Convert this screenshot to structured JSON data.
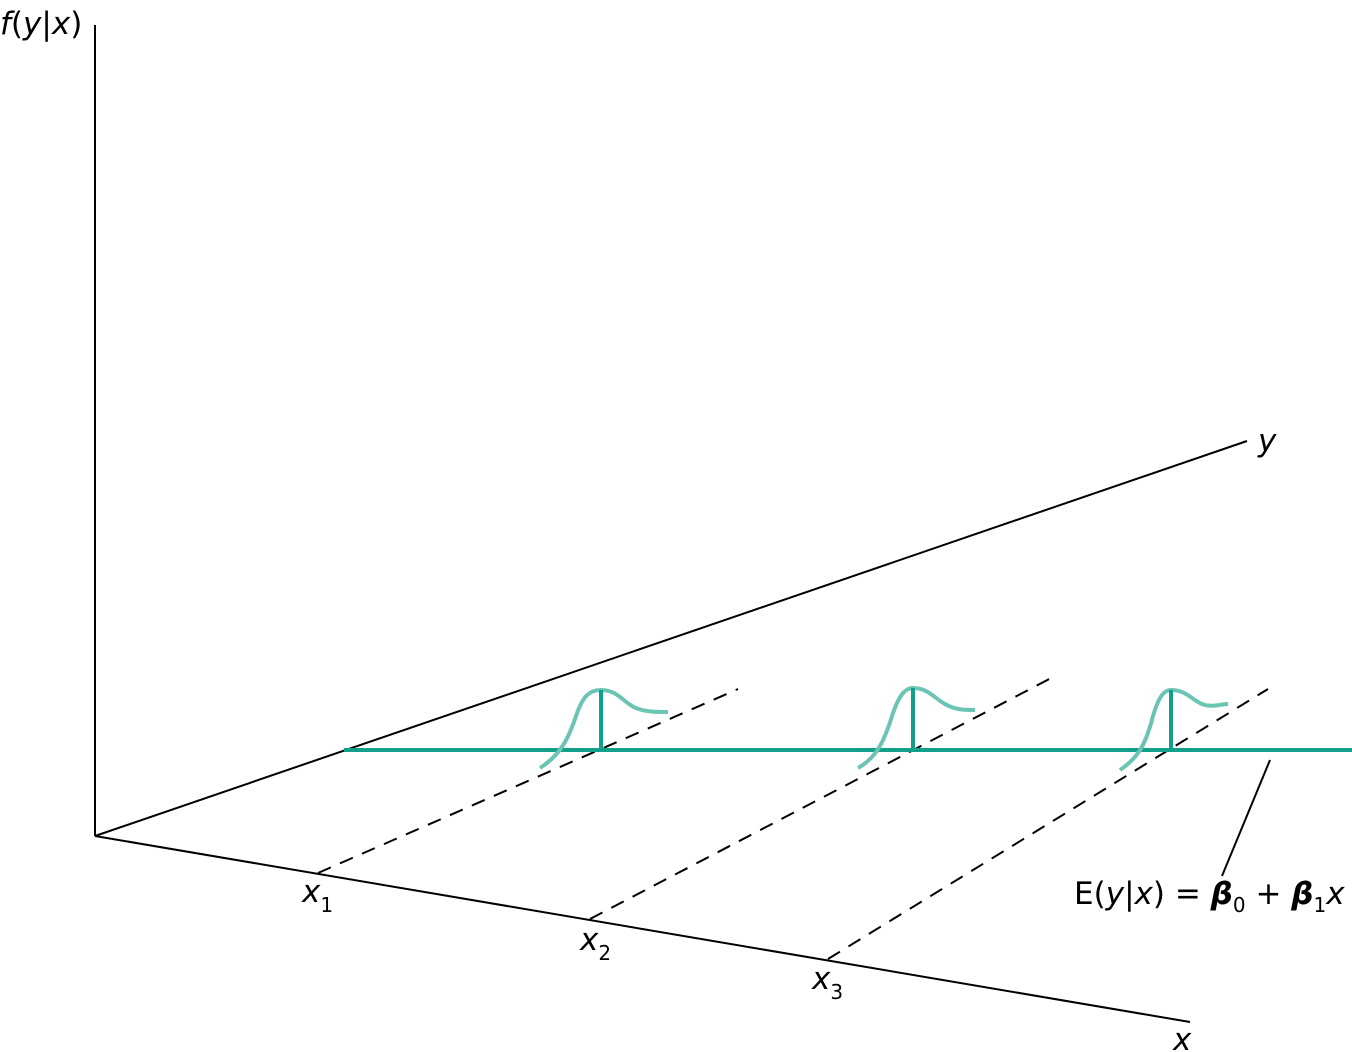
{
  "colors": {
    "axis": "#000000",
    "regression_line": "#12a08a",
    "density_curve": "#6cc4b4",
    "background": "#ffffff"
  },
  "labels": {
    "vertical_axis": {
      "f": "f",
      "open": "(",
      "y": "y",
      "bar": "|",
      "x": "x",
      "close": ")"
    },
    "depth_axis": "y",
    "horizontal_axis": "x",
    "ticks": [
      {
        "main": "x",
        "sub": "1"
      },
      {
        "main": "x",
        "sub": "2"
      },
      {
        "main": "x",
        "sub": "3"
      }
    ],
    "equation": {
      "E": "E",
      "open": "(",
      "y": "y",
      "bar": "|",
      "x": "x",
      "close": ")",
      "eq": " = ",
      "beta0": "β",
      "beta0_sub": "0",
      "plus": " + ",
      "beta1": "β",
      "beta1_sub": "1",
      "x_term": "x"
    }
  }
}
